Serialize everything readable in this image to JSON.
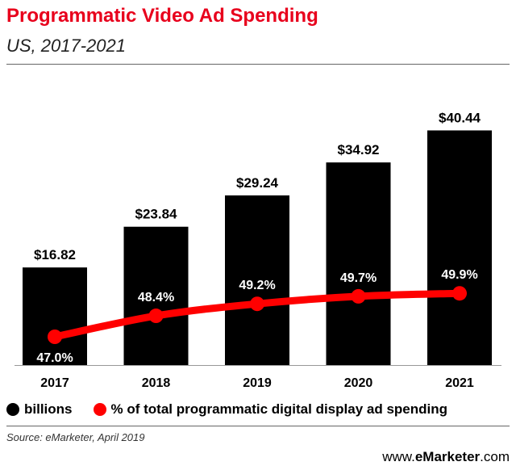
{
  "header": {
    "title": "Programmatic Video Ad Spending",
    "subtitle": "US, 2017-2021"
  },
  "legend": {
    "bars_label": "billions",
    "line_label": "% of total programmatic digital display ad spending"
  },
  "footer": {
    "source": "Source: eMarketer, April 2019",
    "brand_prefix": "www.",
    "brand_bold": "eMarketer",
    "brand_suffix": ".com"
  },
  "colors": {
    "title": "#e8001c",
    "bars": "#000000",
    "line": "#ff0000"
  },
  "chart_data": {
    "type": "bar",
    "categories": [
      "2017",
      "2018",
      "2019",
      "2020",
      "2021"
    ],
    "series": [
      {
        "name": "billions",
        "type": "bar",
        "values": [
          16.82,
          23.84,
          29.24,
          34.92,
          40.44
        ],
        "labels": [
          "$16.82",
          "$23.84",
          "$29.24",
          "$34.92",
          "$40.44"
        ],
        "color": "#000000"
      },
      {
        "name": "% of total programmatic digital display ad spending",
        "type": "line",
        "values": [
          47.0,
          48.4,
          49.2,
          49.7,
          49.9
        ],
        "labels": [
          "47.0%",
          "48.4%",
          "49.2%",
          "49.7%",
          "49.9%"
        ],
        "color": "#ff0000"
      }
    ],
    "grid": false,
    "legend_position": "bottom-left"
  }
}
